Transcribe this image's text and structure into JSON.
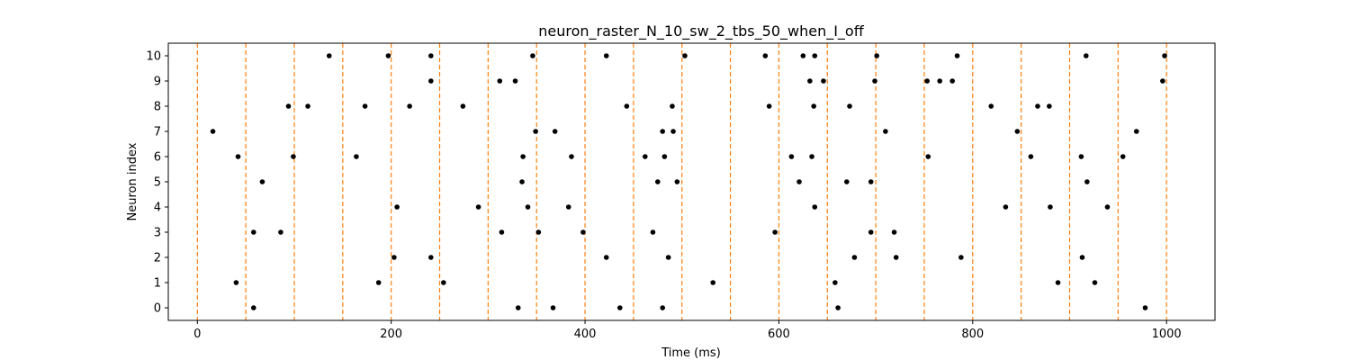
{
  "chart_data": {
    "type": "scatter",
    "title": "neuron_raster_N_10_sw_2_tbs_50_when_I_off",
    "xlabel": "Time (ms)",
    "ylabel": "Neuron index",
    "xlim": [
      -30,
      1050
    ],
    "ylim": [
      -0.5,
      10.5
    ],
    "x_ticks": [
      0,
      200,
      400,
      600,
      800,
      1000
    ],
    "y_ticks": [
      0,
      1,
      2,
      3,
      4,
      5,
      6,
      7,
      8,
      9,
      10
    ],
    "marker_color": "#000000",
    "vline_color": "#ff7f0e",
    "vlines": [
      0,
      50,
      100,
      150,
      200,
      250,
      300,
      350,
      400,
      450,
      500,
      550,
      600,
      650,
      700,
      750,
      800,
      850,
      900,
      950,
      1000
    ],
    "series": [
      {
        "points": [
          [
            136,
            10
          ],
          [
            197,
            10
          ],
          [
            241,
            10
          ],
          [
            346,
            10
          ],
          [
            422,
            10
          ],
          [
            503,
            10
          ],
          [
            586,
            10
          ],
          [
            625,
            10
          ],
          [
            637,
            10
          ],
          [
            701,
            10
          ],
          [
            784,
            10
          ],
          [
            917,
            10
          ],
          [
            998,
            10
          ],
          [
            241,
            9
          ],
          [
            312,
            9
          ],
          [
            328,
            9
          ],
          [
            632,
            9
          ],
          [
            646,
            9
          ],
          [
            699,
            9
          ],
          [
            753,
            9
          ],
          [
            766,
            9
          ],
          [
            779,
            9
          ],
          [
            996,
            9
          ],
          [
            94,
            8
          ],
          [
            114,
            8
          ],
          [
            173,
            8
          ],
          [
            219,
            8
          ],
          [
            274,
            8
          ],
          [
            443,
            8
          ],
          [
            490,
            8
          ],
          [
            590,
            8
          ],
          [
            636,
            8
          ],
          [
            673,
            8
          ],
          [
            819,
            8
          ],
          [
            867,
            8
          ],
          [
            879,
            8
          ],
          [
            16,
            7
          ],
          [
            349,
            7
          ],
          [
            369,
            7
          ],
          [
            480,
            7
          ],
          [
            491,
            7
          ],
          [
            710,
            7
          ],
          [
            846,
            7
          ],
          [
            969,
            7
          ],
          [
            42,
            6
          ],
          [
            99,
            6
          ],
          [
            164,
            6
          ],
          [
            336,
            6
          ],
          [
            386,
            6
          ],
          [
            462,
            6
          ],
          [
            482,
            6
          ],
          [
            613,
            6
          ],
          [
            634,
            6
          ],
          [
            754,
            6
          ],
          [
            860,
            6
          ],
          [
            912,
            6
          ],
          [
            955,
            6
          ],
          [
            67,
            5
          ],
          [
            335,
            5
          ],
          [
            475,
            5
          ],
          [
            495,
            5
          ],
          [
            621,
            5
          ],
          [
            670,
            5
          ],
          [
            695,
            5
          ],
          [
            918,
            5
          ],
          [
            206,
            4
          ],
          [
            290,
            4
          ],
          [
            341,
            4
          ],
          [
            383,
            4
          ],
          [
            637,
            4
          ],
          [
            834,
            4
          ],
          [
            880,
            4
          ],
          [
            939,
            4
          ],
          [
            58,
            3
          ],
          [
            86,
            3
          ],
          [
            314,
            3
          ],
          [
            352,
            3
          ],
          [
            398,
            3
          ],
          [
            470,
            3
          ],
          [
            596,
            3
          ],
          [
            695,
            3
          ],
          [
            719,
            3
          ],
          [
            203,
            2
          ],
          [
            241,
            2
          ],
          [
            422,
            2
          ],
          [
            486,
            2
          ],
          [
            678,
            2
          ],
          [
            721,
            2
          ],
          [
            788,
            2
          ],
          [
            913,
            2
          ],
          [
            40,
            1
          ],
          [
            187,
            1
          ],
          [
            254,
            1
          ],
          [
            532,
            1
          ],
          [
            658,
            1
          ],
          [
            888,
            1
          ],
          [
            926,
            1
          ],
          [
            58,
            0
          ],
          [
            331,
            0
          ],
          [
            367,
            0
          ],
          [
            436,
            0
          ],
          [
            480,
            0
          ],
          [
            661,
            0
          ],
          [
            978,
            0
          ]
        ]
      }
    ]
  }
}
